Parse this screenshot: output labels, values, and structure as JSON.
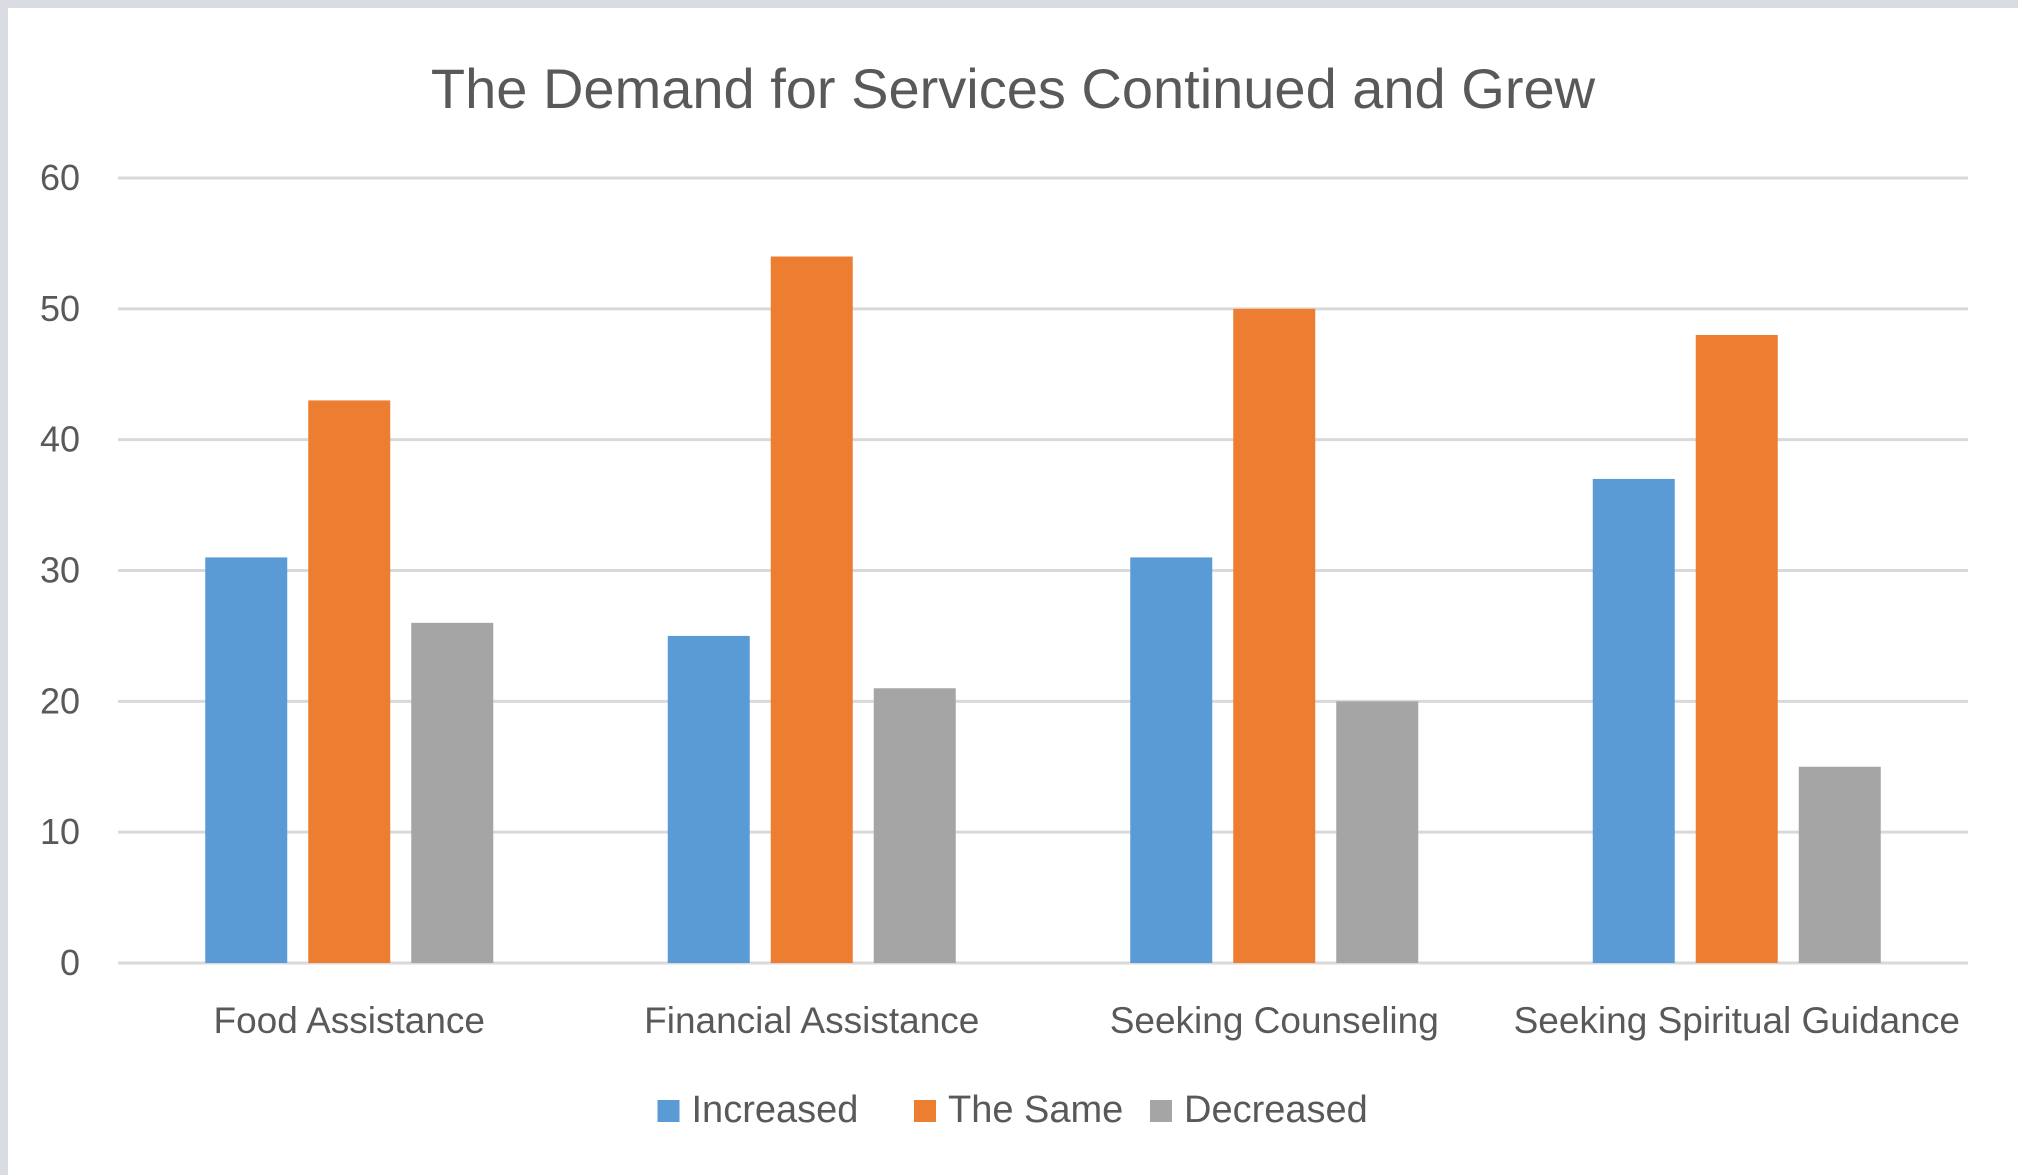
{
  "chart_data": {
    "type": "bar",
    "title": "The Demand for Services Continued and Grew",
    "xlabel": "",
    "ylabel": "",
    "categories": [
      "Food Assistance",
      "Financial Assistance",
      "Seeking Counseling",
      "Seeking Spiritual Guidance"
    ],
    "series": [
      {
        "name": "Increased",
        "values": [
          31,
          25,
          31,
          37
        ],
        "color": "#5b9bd5"
      },
      {
        "name": "The Same",
        "values": [
          43,
          54,
          50,
          48
        ],
        "color": "#ed7d31"
      },
      {
        "name": "Decreased",
        "values": [
          26,
          21,
          20,
          15
        ],
        "color": "#a5a5a5"
      }
    ],
    "ylim": [
      0,
      60
    ],
    "yticks": [
      0,
      10,
      20,
      30,
      40,
      50,
      60
    ],
    "grid": true,
    "legend_position": "bottom",
    "gridline_color": "#d9d9d9"
  }
}
